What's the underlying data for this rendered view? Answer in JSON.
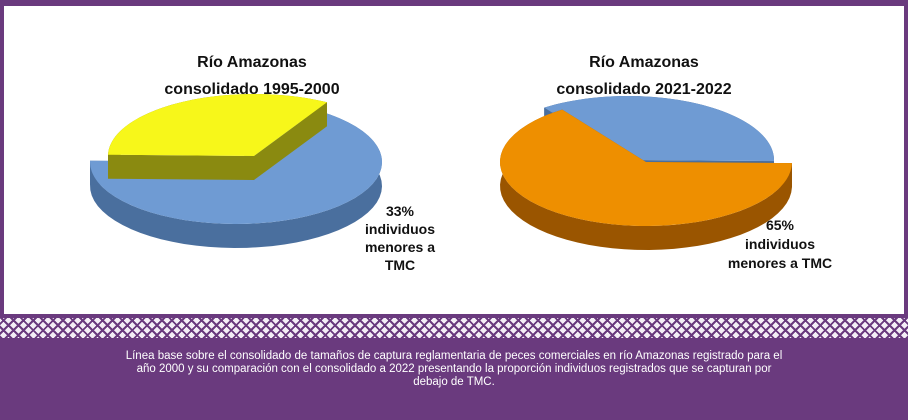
{
  "caption": "Línea base sobre el consolidado de tamaños de captura reglamentaria de peces comerciales en río Amazonas registrado para el año 2000 y su comparación con el consolidado a 2022 presentando la proporción individuos registrados que se capturan por debajo de TMC.",
  "chart_data": [
    {
      "type": "pie",
      "title": [
        "Río Amazonas",
        "consolidado 1995-2000"
      ],
      "slices": [
        {
          "value": 67,
          "color": "#6f9bd3",
          "side_color": "#4a6f9e"
        },
        {
          "value": 33,
          "color": "#f7f71a",
          "side_color": "#8a8a10",
          "label": [
            "33%",
            "individuos",
            "menores a",
            "TMC"
          ]
        }
      ]
    },
    {
      "type": "pie",
      "title": [
        "Río Amazonas",
        "consolidado 2021-2022"
      ],
      "slices": [
        {
          "value": 35,
          "color": "#6f9bd3",
          "side_color": "#4a6f9e"
        },
        {
          "value": 65,
          "color": "#ee8f00",
          "side_color": "#9a5500",
          "label": [
            "65%",
            "individuos",
            "menores a  TMC"
          ]
        }
      ]
    }
  ]
}
